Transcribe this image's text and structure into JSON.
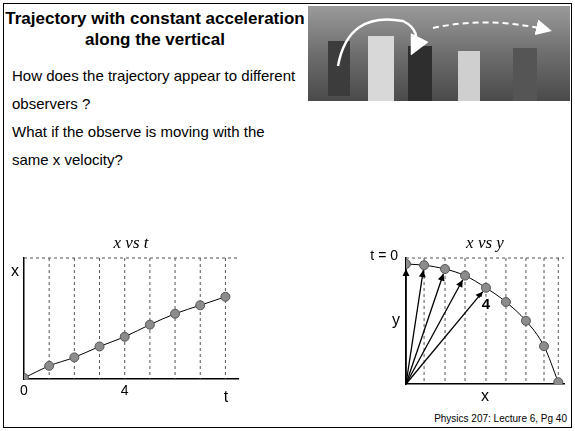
{
  "title": "Trajectory with constant acceleration along the vertical",
  "text": [
    "How does the trajectory appear to different observers ?",
    "What if the observe is moving with the same x velocity?"
  ],
  "footer": "Physics 207: Lecture 6, Pg 40",
  "chart_data": [
    {
      "type": "scatter",
      "title": "x vs t",
      "x_label": "t",
      "y_label": "x",
      "x": [
        0,
        1,
        2,
        3,
        4,
        5,
        6,
        7,
        8
      ],
      "values": [
        0.1,
        1.1,
        1.8,
        2.7,
        3.5,
        4.5,
        5.4,
        6.1,
        6.8
      ],
      "xlim": [
        0,
        8.5
      ],
      "ylim": [
        0,
        10
      ],
      "xticks": [
        0,
        4
      ],
      "tick_labels": "x",
      "color": "#8c8c8c",
      "marker": "circle",
      "line_style": "solid"
    },
    {
      "type": "scatter",
      "title": "x vs y",
      "x_label": "x",
      "y_label": "y",
      "x": [
        0,
        0.95,
        2.05,
        3.1,
        4.2,
        5.25,
        6.3,
        7.25,
        8.0
      ],
      "values": [
        6.0,
        5.94,
        5.75,
        5.42,
        4.81,
        4.1,
        3.16,
        1.89,
        0.09
      ],
      "xlim": [
        0,
        8.3
      ],
      "ylim": [
        0,
        6.3
      ],
      "tick_labels": false,
      "color": "#8c8c8c",
      "marker": "circle",
      "line_style": "solid",
      "annotations": [
        {
          "text": "t = 0",
          "x": 0,
          "y": 6.0
        },
        {
          "text": "4",
          "x": 4.2,
          "y": 4.81
        }
      ]
    }
  ]
}
